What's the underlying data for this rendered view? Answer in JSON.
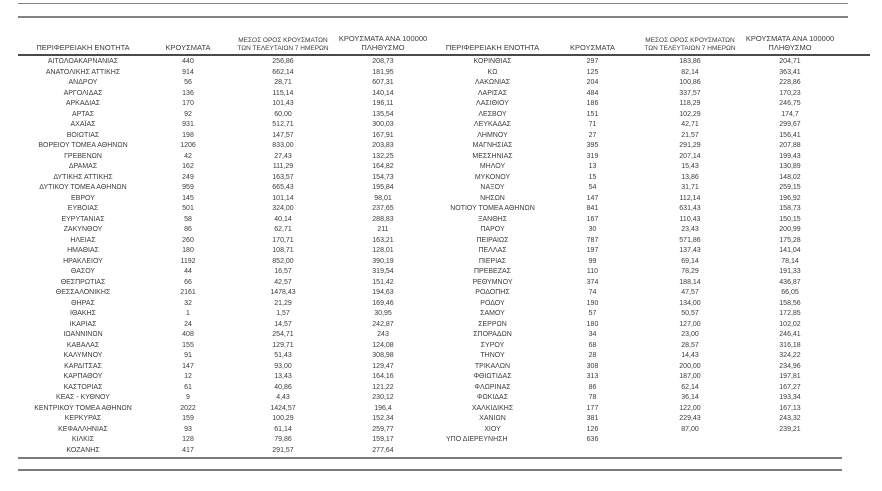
{
  "header": {
    "col_region": "ΠΕΡΙΦΕΡΕΙΑΚΗ ΕΝΟΤΗΤΑ",
    "col_cases": "ΚΡΟΥΣΜΑΤΑ",
    "col_avg7_line1": "ΜΕΣΟΣ ΟΡΟΣ ΚΡΟΥΣΜΑΤΩΝ",
    "col_avg7_line2": "ΤΩΝ ΤΕΛΕΥΤΑΙΩΝ 7 ΗΜΕΡΩΝ",
    "col_per100k_line1": "ΚΡΟΥΣΜΑΤΑ ΑΝΑ 100000",
    "col_per100k_line2": "ΠΛΗΘΥΣΜΟ"
  },
  "left_table": {
    "rows": [
      [
        "ΑΙΤΩΛΟΑΚΑΡΝΑΝΙΑΣ",
        "440",
        "256,86",
        "208,73"
      ],
      [
        "ΑΝΑΤΟΛΙΚΗΣ ΑΤΤΙΚΗΣ",
        "914",
        "662,14",
        "181,95"
      ],
      [
        "ΑΝΔΡΟΥ",
        "56",
        "28,71",
        "607,31"
      ],
      [
        "ΑΡΓΟΛΙΔΑΣ",
        "136",
        "115,14",
        "140,14"
      ],
      [
        "ΑΡΚΑΔΙΑΣ",
        "170",
        "101,43",
        "196,11"
      ],
      [
        "ΑΡΤΑΣ",
        "92",
        "60,00",
        "135,54"
      ],
      [
        "ΑΧΑΪΑΣ",
        "931",
        "512,71",
        "300,03"
      ],
      [
        "ΒΟΙΩΤΙΑΣ",
        "198",
        "147,57",
        "167,91"
      ],
      [
        "ΒΟΡΕΙΟΥ ΤΟΜΕΑ ΑΘΗΝΩΝ",
        "1206",
        "833,00",
        "203,83"
      ],
      [
        "ΓΡΕΒΕΝΩΝ",
        "42",
        "27,43",
        "132,25"
      ],
      [
        "ΔΡΑΜΑΣ",
        "162",
        "111,29",
        "164,82"
      ],
      [
        "ΔΥΤΙΚΗΣ ΑΤΤΙΚΗΣ",
        "249",
        "163,57",
        "154,73"
      ],
      [
        "ΔΥΤΙΚΟΥ ΤΟΜΕΑ ΑΘΗΝΩΝ",
        "959",
        "665,43",
        "195,84"
      ],
      [
        "ΕΒΡΟΥ",
        "145",
        "101,14",
        "98,01"
      ],
      [
        "ΕΥΒΟΙΑΣ",
        "501",
        "324,00",
        "237,65"
      ],
      [
        "ΕΥΡΥΤΑΝΙΑΣ",
        "58",
        "40,14",
        "288,83"
      ],
      [
        "ΖΑΚΥΝΘΟΥ",
        "86",
        "62,71",
        "211"
      ],
      [
        "ΗΛΕΙΑΣ",
        "260",
        "170,71",
        "163,21"
      ],
      [
        "ΗΜΑΘΙΑΣ",
        "180",
        "108,71",
        "128,01"
      ],
      [
        "ΗΡΑΚΛΕΙΟΥ",
        "1192",
        "852,00",
        "390,19"
      ],
      [
        "ΘΑΣΟΥ",
        "44",
        "16,57",
        "319,54"
      ],
      [
        "ΘΕΣΠΡΩΤΙΑΣ",
        "66",
        "42,57",
        "151,42"
      ],
      [
        "ΘΕΣΣΑΛΟΝΙΚΗΣ",
        "2161",
        "1478,43",
        "194,63"
      ],
      [
        "ΘΗΡΑΣ",
        "32",
        "21,29",
        "169,46"
      ],
      [
        "ΙΘΑΚΗΣ",
        "1",
        "1,57",
        "30,95"
      ],
      [
        "ΙΚΑΡΙΑΣ",
        "24",
        "14,57",
        "242,87"
      ],
      [
        "ΙΩΑΝΝΙΝΩΝ",
        "408",
        "254,71",
        "243"
      ],
      [
        "ΚΑΒΑΛΑΣ",
        "155",
        "129,71",
        "124,08"
      ],
      [
        "ΚΑΛΥΜΝΟΥ",
        "91",
        "51,43",
        "308,98"
      ],
      [
        "ΚΑΡΔΙΤΣΑΣ",
        "147",
        "93,00",
        "129,47"
      ],
      [
        "ΚΑΡΠΑΘΟΥ",
        "12",
        "13,43",
        "164,16"
      ],
      [
        "ΚΑΣΤΟΡΙΑΣ",
        "61",
        "40,86",
        "121,22"
      ],
      [
        "ΚΕΑΣ - ΚΥΘΝΟΥ",
        "9",
        "4,43",
        "230,12"
      ],
      [
        "ΚΕΝΤΡΙΚΟΥ ΤΟΜΕΑ ΑΘΗΝΩΝ",
        "2022",
        "1424,57",
        "196,4"
      ],
      [
        "ΚΕΡΚΥΡΑΣ",
        "159",
        "100,29",
        "152,34"
      ],
      [
        "ΚΕΦΑΛΛΗΝΙΑΣ",
        "93",
        "61,14",
        "259,77"
      ],
      [
        "ΚΙΛΚΙΣ",
        "128",
        "79,86",
        "159,17"
      ],
      [
        "ΚΟΖΑΝΗΣ",
        "417",
        "291,57",
        "277,64"
      ]
    ]
  },
  "right_table": {
    "left_aligned_region": "ΥΠΟ ΔΙΕΡΕΥΝΗΣΗ",
    "rows": [
      [
        "ΚΟΡΙΝΘΙΑΣ",
        "297",
        "183,86",
        "204,71"
      ],
      [
        "ΚΩ",
        "125",
        "82,14",
        "363,41"
      ],
      [
        "ΛΑΚΩΝΙΑΣ",
        "204",
        "100,86",
        "228,86"
      ],
      [
        "ΛΑΡΙΣΑΣ",
        "484",
        "337,57",
        "170,23"
      ],
      [
        "ΛΑΣΙΘΙΟΥ",
        "186",
        "118,29",
        "246,75"
      ],
      [
        "ΛΕΣΒΟΥ",
        "151",
        "102,29",
        "174,7"
      ],
      [
        "ΛΕΥΚΑΔΑΣ",
        "71",
        "42,71",
        "299,67"
      ],
      [
        "ΛΗΜΝΟΥ",
        "27",
        "21,57",
        "156,41"
      ],
      [
        "ΜΑΓΝΗΣΙΑΣ",
        "395",
        "291,29",
        "207,88"
      ],
      [
        "ΜΕΣΣΗΝΙΑΣ",
        "319",
        "207,14",
        "199,43"
      ],
      [
        "ΜΗΛΟΥ",
        "13",
        "15,43",
        "130,89"
      ],
      [
        "ΜΥΚΟΝΟΥ",
        "15",
        "13,86",
        "148,02"
      ],
      [
        "ΝΑΞΟΥ",
        "54",
        "31,71",
        "259,15"
      ],
      [
        "ΝΗΣΩΝ",
        "147",
        "112,14",
        "196,92"
      ],
      [
        "ΝΟΤΙΟΥ ΤΟΜΕΑ ΑΘΗΝΩΝ",
        "841",
        "631,43",
        "158,73"
      ],
      [
        "ΞΑΝΘΗΣ",
        "167",
        "110,43",
        "150,15"
      ],
      [
        "ΠΑΡΟΥ",
        "30",
        "23,43",
        "200,99"
      ],
      [
        "ΠΕΙΡΑΙΩΣ",
        "787",
        "571,86",
        "175,28"
      ],
      [
        "ΠΕΛΛΑΣ",
        "197",
        "137,43",
        "141,04"
      ],
      [
        "ΠΙΕΡΙΑΣ",
        "99",
        "69,14",
        "78,14"
      ],
      [
        "ΠΡΕΒΕΖΑΣ",
        "110",
        "78,29",
        "191,33"
      ],
      [
        "ΡΕΘΥΜΝΟΥ",
        "374",
        "188,14",
        "436,87"
      ],
      [
        "ΡΟΔΟΠΗΣ",
        "74",
        "47,57",
        "66,05"
      ],
      [
        "ΡΟΔΟΥ",
        "190",
        "134,00",
        "158,56"
      ],
      [
        "ΣΑΜΟΥ",
        "57",
        "50,57",
        "172,85"
      ],
      [
        "ΣΕΡΡΩΝ",
        "180",
        "127,00",
        "102,02"
      ],
      [
        "ΣΠΟΡΑΔΩΝ",
        "34",
        "23,00",
        "246,41"
      ],
      [
        "ΣΥΡΟΥ",
        "68",
        "28,57",
        "316,18"
      ],
      [
        "ΤΗΝΟΥ",
        "28",
        "14,43",
        "324,22"
      ],
      [
        "ΤΡΙΚΑΛΩΝ",
        "308",
        "200,00",
        "234,96"
      ],
      [
        "ΦΘΙΩΤΙΔΑΣ",
        "313",
        "187,00",
        "197,81"
      ],
      [
        "ΦΛΩΡΙΝΑΣ",
        "86",
        "62,14",
        "167,27"
      ],
      [
        "ΦΩΚΙΔΑΣ",
        "78",
        "36,14",
        "193,34"
      ],
      [
        "ΧΑΛΚΙΔΙΚΗΣ",
        "177",
        "122,00",
        "167,13"
      ],
      [
        "ΧΑΝΙΩΝ",
        "381",
        "229,43",
        "243,32"
      ],
      [
        "ΧΙΟΥ",
        "126",
        "87,00",
        "239,21"
      ],
      [
        "ΥΠΟ ΔΙΕΡΕΥΝΗΣΗ",
        "636",
        "",
        ""
      ]
    ]
  }
}
